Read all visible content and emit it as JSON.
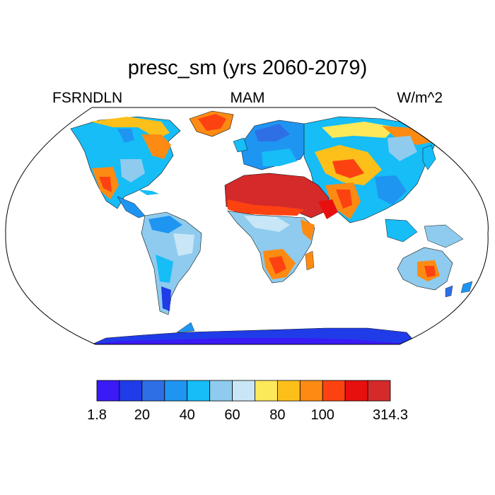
{
  "title": "presc_sm (yrs 2060-2079)",
  "left_label": "FSRNDLN",
  "center_label": "MAM",
  "right_label": "W/m^2",
  "colorbar": {
    "colors": [
      "#3a1af5",
      "#1f3ce8",
      "#2f6fe6",
      "#1f95f2",
      "#16bdf6",
      "#8ecbee",
      "#c8e6f6",
      "#fde85a",
      "#fdc01a",
      "#fd8b13",
      "#fd4212",
      "#e80f0f",
      "#d42a2a"
    ],
    "labels": [
      {
        "text": "1.8",
        "boundary": 0
      },
      {
        "text": "20",
        "boundary": 2
      },
      {
        "text": "40",
        "boundary": 4
      },
      {
        "text": "60",
        "boundary": 6
      },
      {
        "text": "80",
        "boundary": 8
      },
      {
        "text": "100",
        "boundary": 10
      },
      {
        "text": "314.3",
        "boundary": 13
      }
    ]
  },
  "map": {
    "projection": "Robinson",
    "ocean_color": "#ffffff",
    "land_regions": [
      {
        "name": "North America",
        "color_index": 4
      },
      {
        "name": "Greenland",
        "color_index": 10
      },
      {
        "name": "South America",
        "color_index": 5
      },
      {
        "name": "Europe",
        "color_index": 3
      },
      {
        "name": "Sahara and Arabia",
        "color_index": 12
      },
      {
        "name": "Central and Southern Africa",
        "color_index": 5
      },
      {
        "name": "Asia",
        "color_index": 4
      },
      {
        "name": "Australia",
        "color_index": 5
      },
      {
        "name": "Antarctica",
        "color_index": 1
      }
    ]
  }
}
